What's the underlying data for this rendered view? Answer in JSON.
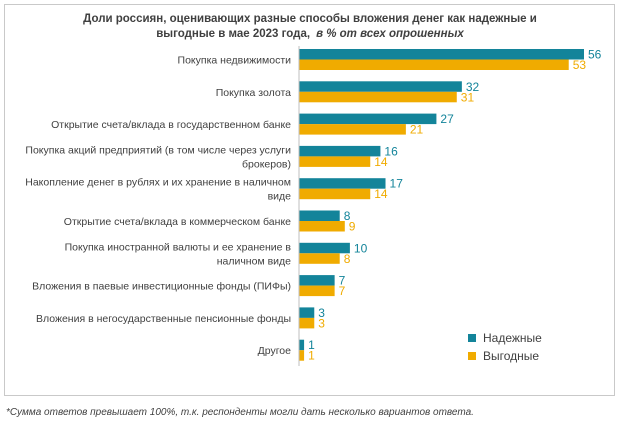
{
  "title": {
    "line1": "Доли россиян, оценивающих разные способы вложения денег как надежные и",
    "line2": "выгодные в мае 2023 года,",
    "unit": "в % от всех опрошенных"
  },
  "footnote": "*Сумма ответов превышает 100%, т.к. респонденты могли дать несколько вариантов ответа.",
  "colors": {
    "reliable": "#13849a",
    "profitable": "#f0ab00"
  },
  "chart_data": {
    "type": "bar",
    "orientation": "horizontal",
    "categories": [
      [
        "Покупка недвижимости"
      ],
      [
        "Покупка золота"
      ],
      [
        "Открытие счета/вклада в государственном банке"
      ],
      [
        "Покупка акций предприятий (в том числе через услуги",
        "брокеров)"
      ],
      [
        "Накопление денег в рублях и их хранение в наличном",
        "виде"
      ],
      [
        "Открытие счета/вклада в коммерческом банке"
      ],
      [
        "Покупка иностранной валюты и ее хранение в",
        "наличном виде"
      ],
      [
        "Вложения в паевые инвестиционные фонды (ПИФы)"
      ],
      [
        "Вложения в негосударственные пенсионные фонды"
      ],
      [
        "Другое"
      ]
    ],
    "series": [
      {
        "name": "Надежные",
        "values": [
          56,
          32,
          27,
          16,
          17,
          8,
          10,
          7,
          3,
          1
        ]
      },
      {
        "name": "Выгодные",
        "values": [
          53,
          31,
          21,
          14,
          14,
          9,
          8,
          7,
          3,
          1
        ]
      }
    ],
    "xlim": [
      0,
      56
    ],
    "legend_position": "bottom-right",
    "grid": false
  }
}
